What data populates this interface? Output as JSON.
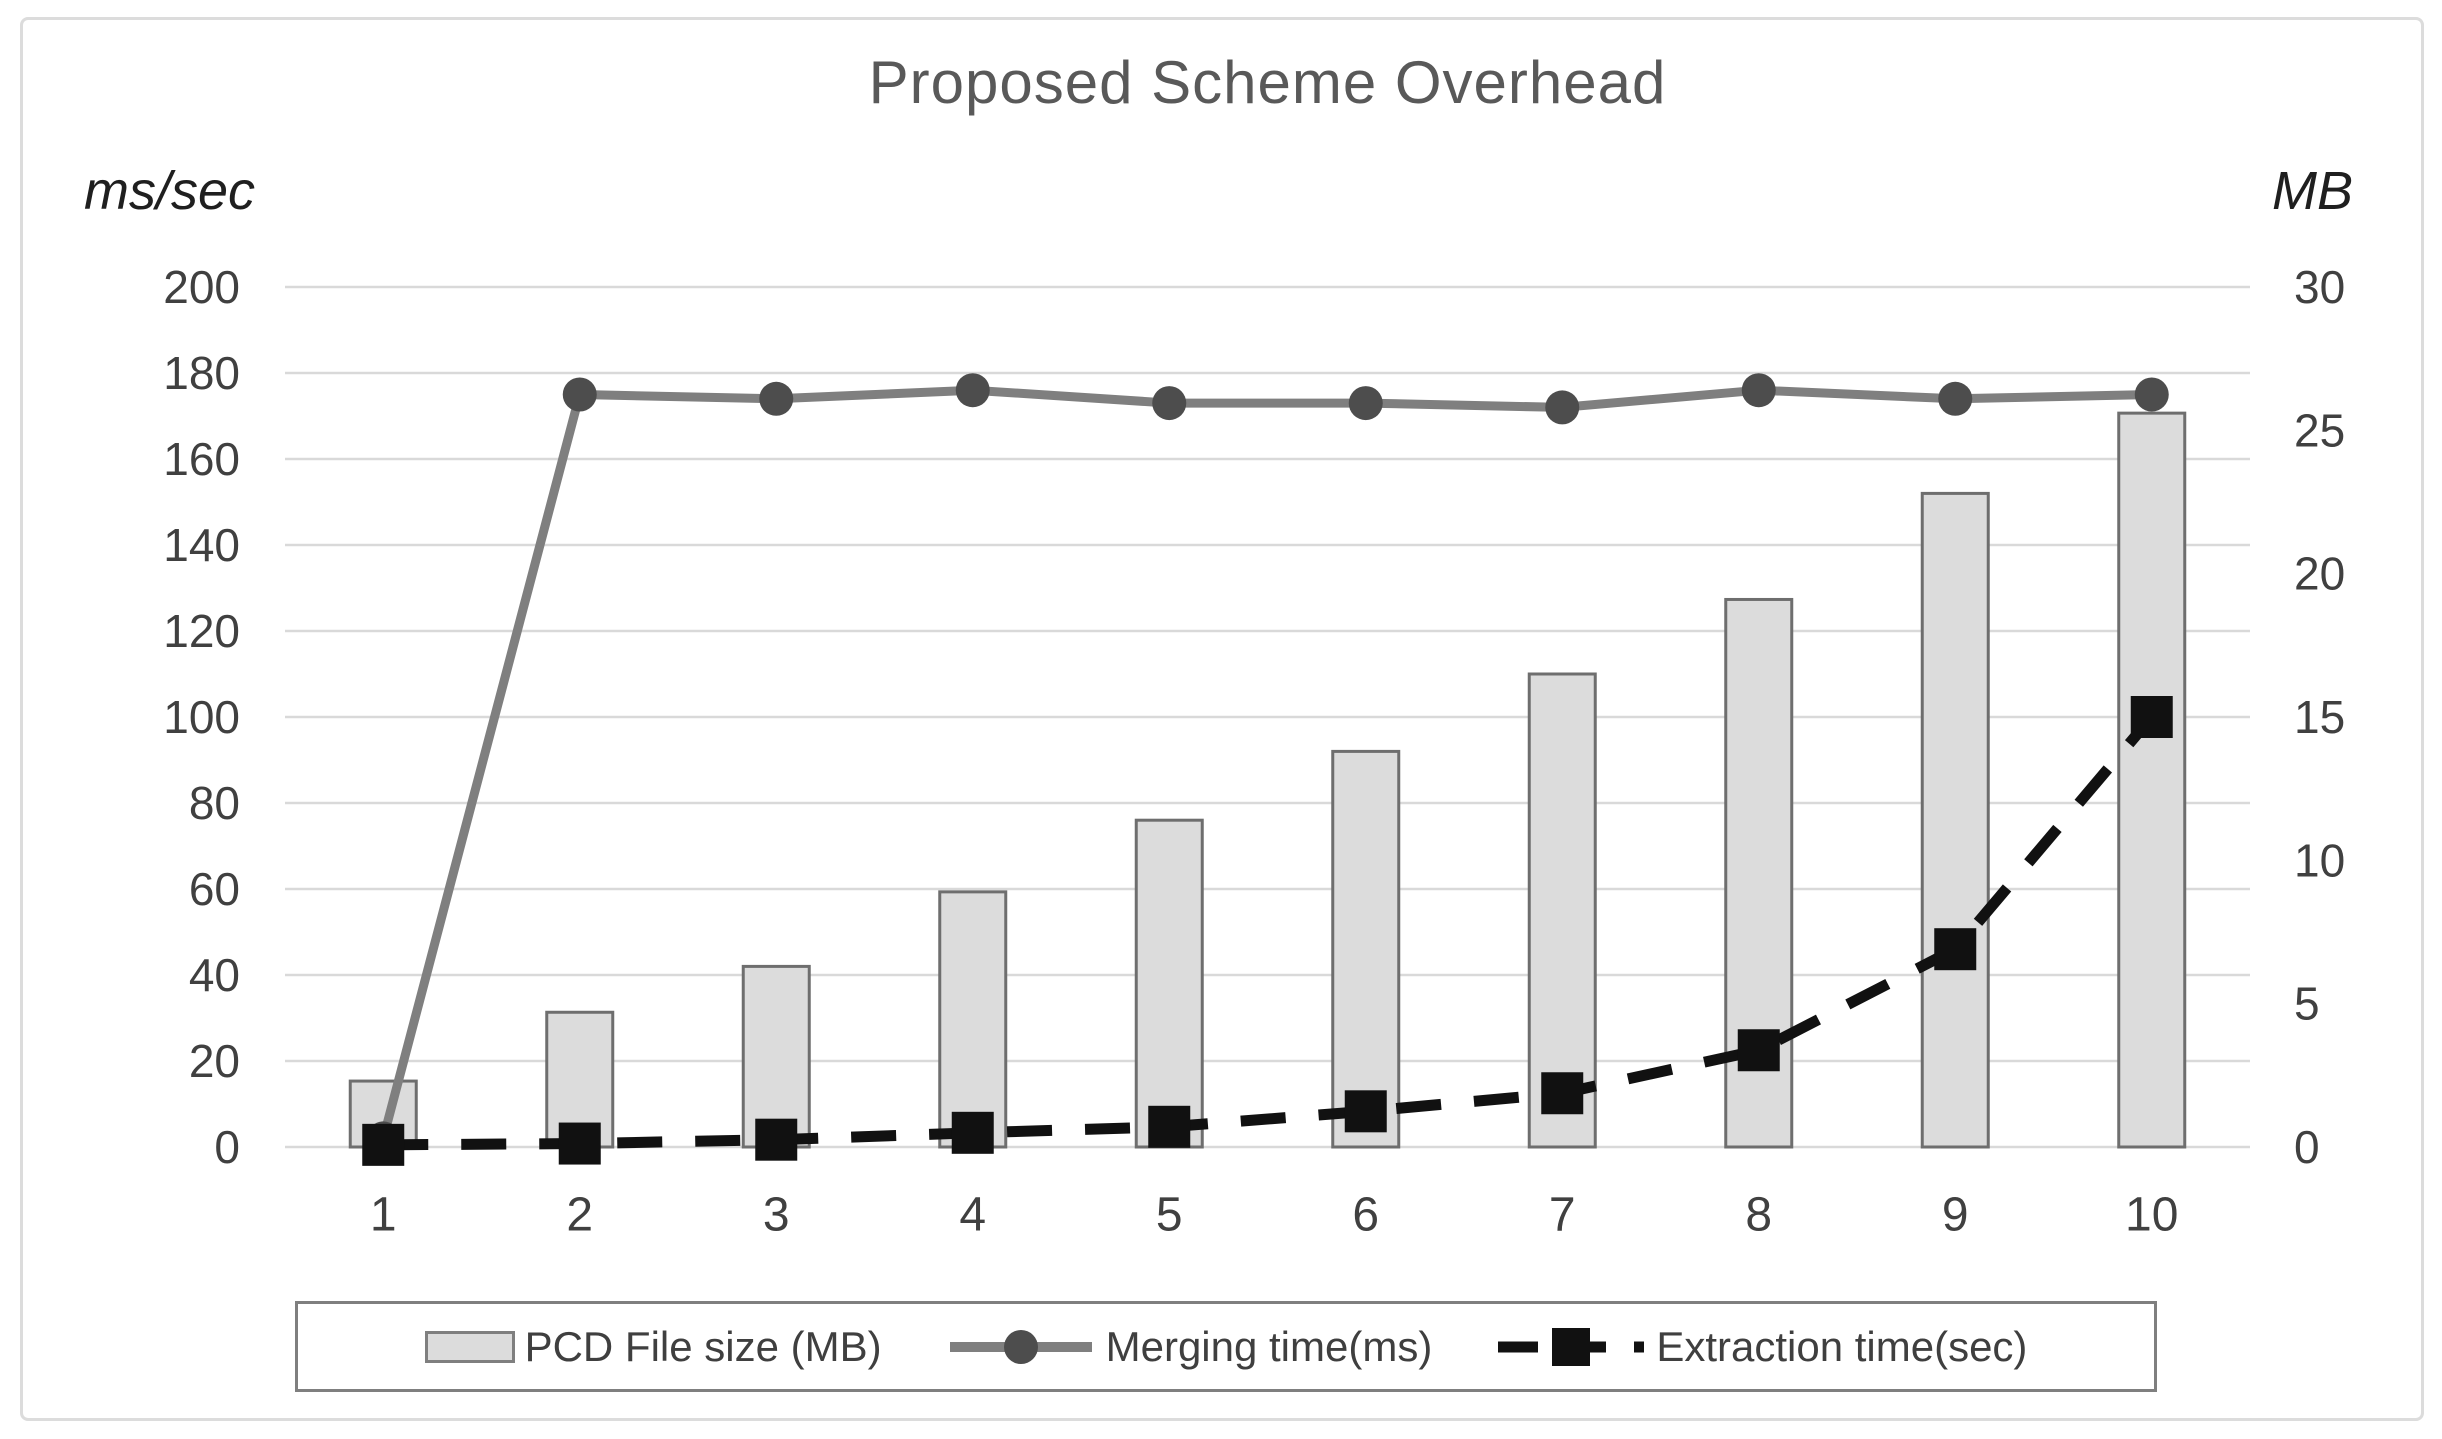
{
  "chart_data": {
    "type": "bar",
    "subtype": "combo-bar-line-dual-axis",
    "title": "Proposed Scheme Overhead",
    "categories": [
      "1",
      "2",
      "3",
      "4",
      "5",
      "6",
      "7",
      "8",
      "9",
      "10"
    ],
    "series": [
      {
        "name": "PCD File size (MB)",
        "kind": "bar",
        "axis": "right",
        "values": [
          2.3,
          4.7,
          6.3,
          8.9,
          11.4,
          13.8,
          16.5,
          19.1,
          22.8,
          25.6
        ]
      },
      {
        "name": "Merging time(ms)",
        "kind": "line-solid-circle-markers",
        "axis": "left",
        "values": [
          2,
          175,
          174,
          176,
          173,
          173,
          172,
          176,
          174,
          175
        ]
      },
      {
        "name": "Extraction time(sec)",
        "kind": "line-dashed-square-markers",
        "axis": "left",
        "values": [
          0.5,
          0.8,
          1.7,
          3.3,
          4.7,
          8.3,
          12.5,
          22.5,
          46,
          100
        ]
      }
    ],
    "left_axis": {
      "unit": "ms/sec",
      "min": 0,
      "max": 200,
      "step": 20,
      "ticks": [
        200,
        180,
        160,
        140,
        120,
        100,
        80,
        60,
        40,
        20,
        0
      ]
    },
    "right_axis": {
      "unit": "MB",
      "min": 0,
      "max": 30,
      "step": 5,
      "ticks": [
        30,
        25,
        20,
        15,
        10,
        5,
        0
      ]
    },
    "grid": true,
    "legend_position": "bottom"
  },
  "colors": {
    "bar_fill": "#dcdcdc",
    "bar_border": "#6e6e6e",
    "merging_line": "#7f7f7f",
    "merging_marker": "#4d4d4d",
    "extraction_line": "#111111",
    "gridline": "#d9d9d9",
    "tick_label": "#404040",
    "title_text": "#595959",
    "legend_text": "#3f3f3f",
    "frame_border": "#dcdcdc",
    "legend_border": "#7f7f7f"
  }
}
